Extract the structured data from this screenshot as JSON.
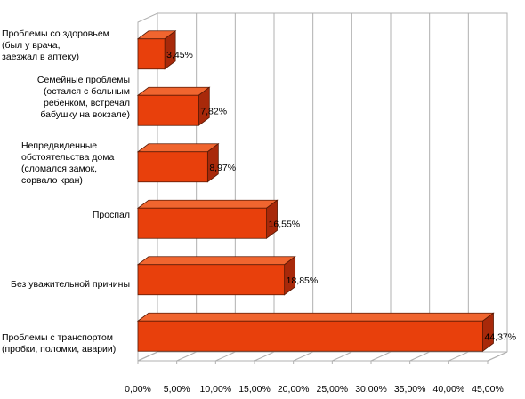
{
  "chart_data": {
    "type": "bar",
    "orientation": "horizontal",
    "three_d": true,
    "title": "",
    "xlabel": "",
    "ylabel": "",
    "xlim": [
      0,
      45
    ],
    "x_ticks": [
      "0,00%",
      "5,00%",
      "10,00%",
      "15,00%",
      "20,00%",
      "25,00%",
      "30,00%",
      "35,00%",
      "40,00%",
      "45,00%"
    ],
    "grid": true,
    "categories": [
      "Проблемы со здоровьем\n(был у врача,\nзаезжал в аптеку)",
      "Семейные проблемы\n(остался с больным\nребенком, встречал\nбабушку на вокзале)",
      "Непредвиденные\nобстоятельства дома\n(сломался замок,\nсорвало кран)",
      "Проспал",
      "Без уважительной причины",
      "Проблемы с транспортом\n(пробки, поломки, аварии)"
    ],
    "values": [
      3.45,
      7.82,
      8.97,
      16.55,
      18.85,
      44.37
    ],
    "data_labels": [
      "3,45%",
      "7,82%",
      "8,97%",
      "16,55%",
      "18,85%",
      "44,37%"
    ],
    "bar_color": "#e8400c",
    "bar_top_color": "#f0652f",
    "bar_side_color": "#a8290a",
    "gridline_color": "#b0b0b0"
  }
}
